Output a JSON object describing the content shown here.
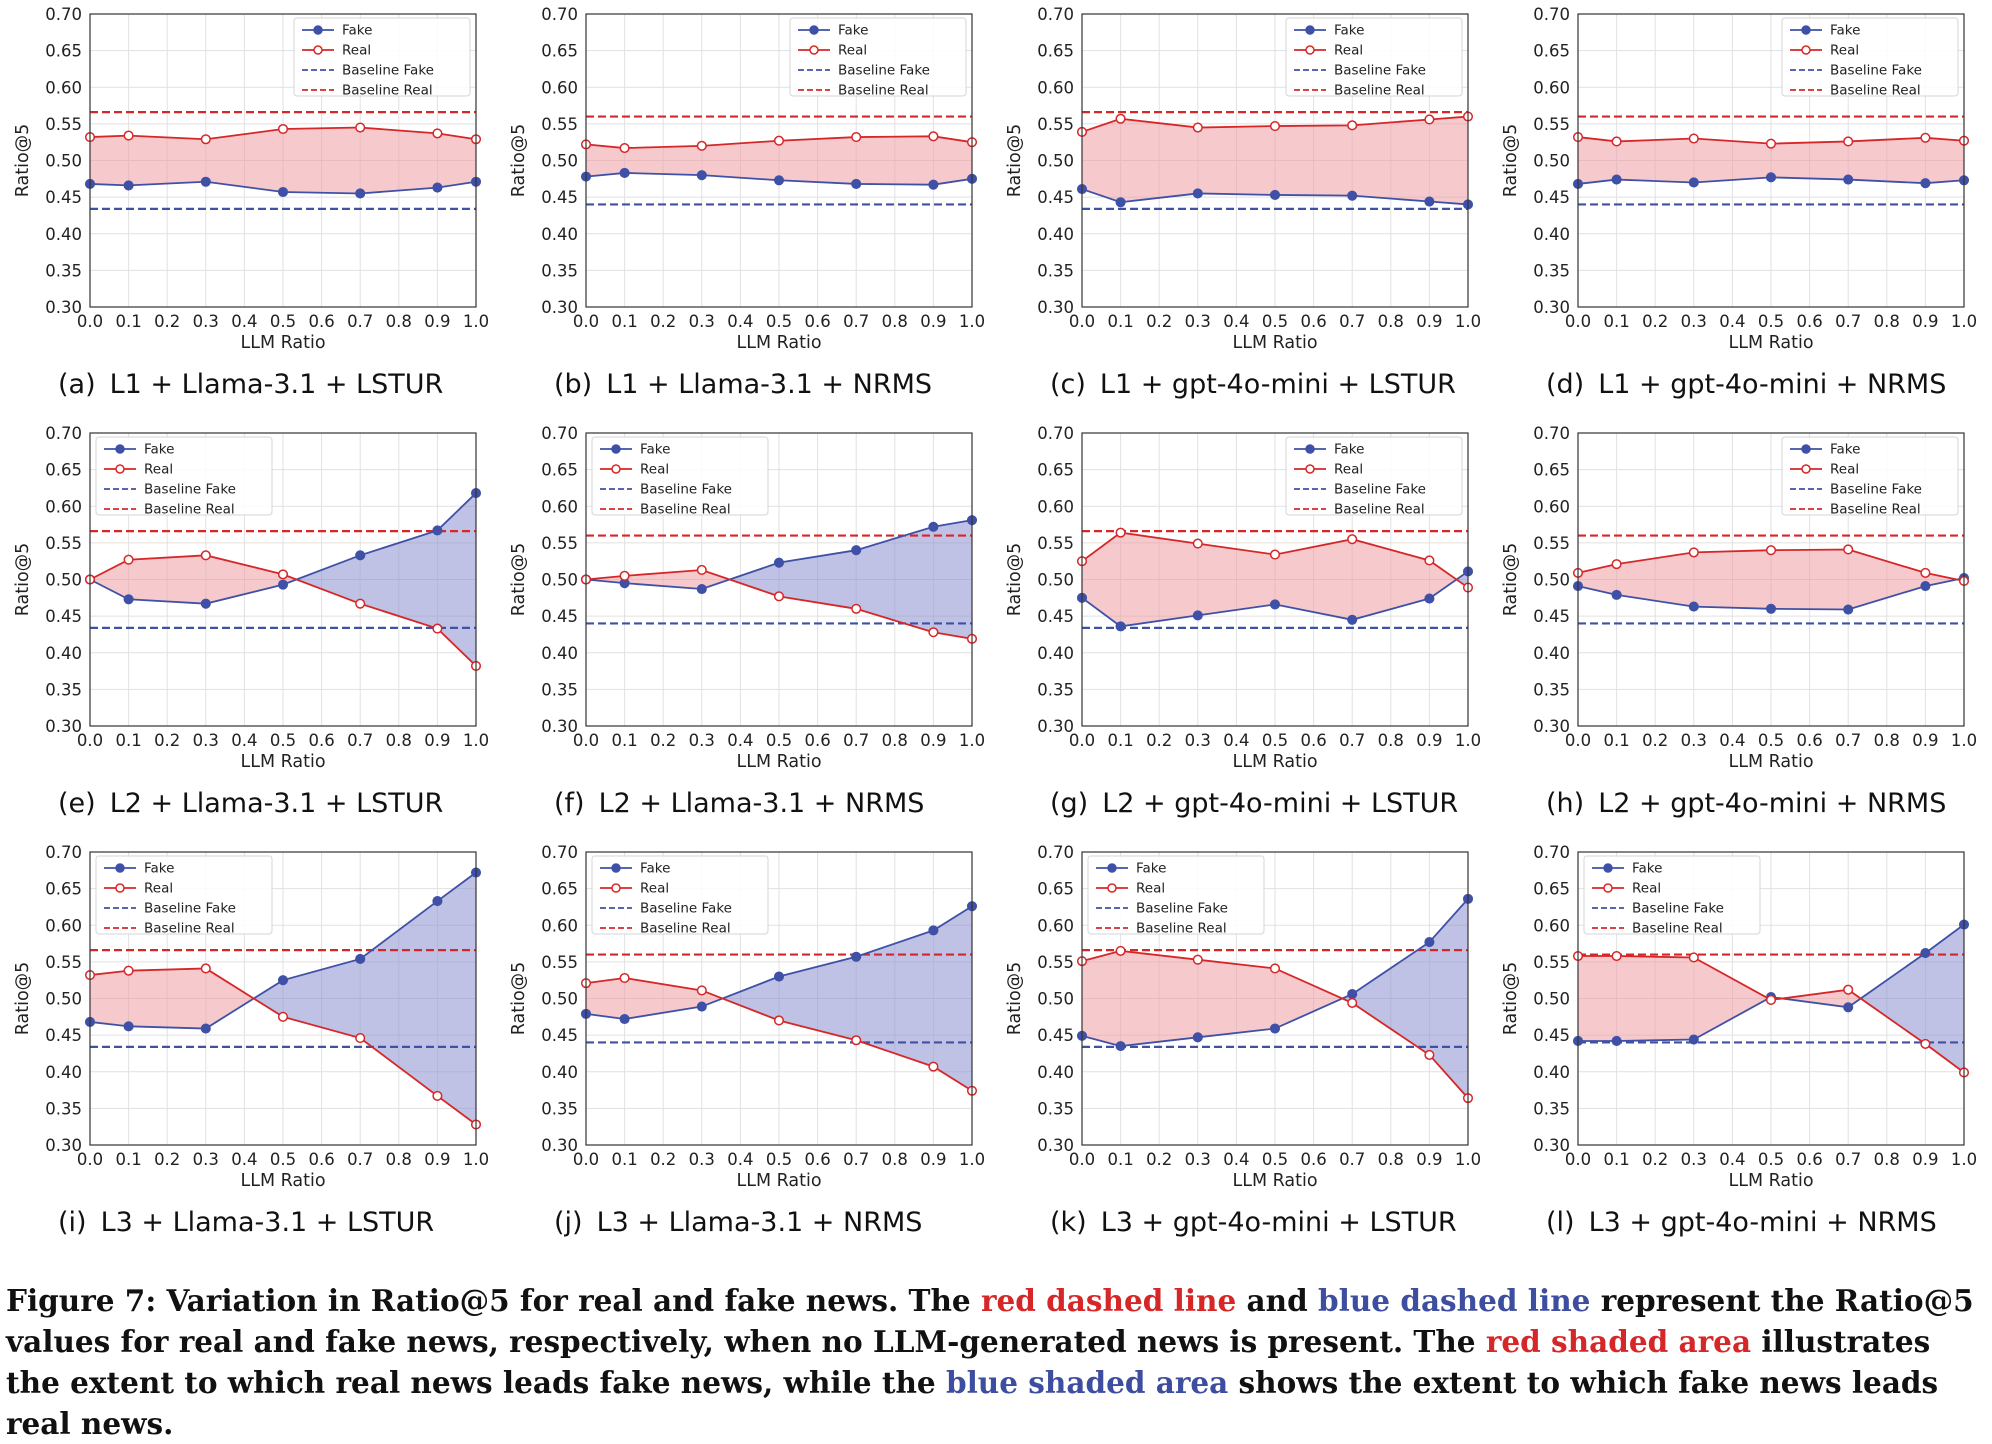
{
  "colors": {
    "fake": "#3F51A6",
    "real": "#D62728",
    "fake_fill": "#8C8FCF",
    "real_fill": "#EE9DA4",
    "grid": "#E1E1E1"
  },
  "axis": {
    "xlabel": "LLM Ratio",
    "ylabel": "Ratio@5",
    "xlim": [
      0.0,
      1.0
    ],
    "ylim": [
      0.3,
      0.7
    ],
    "xticks": [
      "0.0",
      "0.1",
      "0.2",
      "0.3",
      "0.4",
      "0.5",
      "0.6",
      "0.7",
      "0.8",
      "0.9",
      "1.0"
    ],
    "yticks": [
      "0.30",
      "0.35",
      "0.40",
      "0.45",
      "0.50",
      "0.55",
      "0.60",
      "0.65",
      "0.70"
    ]
  },
  "legend_labels": [
    "Fake",
    "Real",
    "Baseline Fake",
    "Baseline Real"
  ],
  "caption": {
    "prefix": "Figure 7: Variation in Ratio@5 for real and fake news. The ",
    "red_dashed": "red dashed line",
    "and": " and ",
    "blue_dashed": "blue dashed line",
    "mid1": " represent the Ratio@5 values for real and fake news, respectively, when no LLM-generated news is present. The ",
    "red_shaded": "red shaded area",
    "mid2": " illustrates the extent to which real news leads fake news, while the ",
    "blue_shaded": "blue shaded area",
    "suffix": " shows the extent to which fake news leads real news."
  },
  "chart_data": [
    {
      "id": "a",
      "label": "(a)",
      "title": "L1 + Llama-3.1 + LSTUR",
      "type": "line",
      "legend": "top-right",
      "x": [
        0.0,
        0.1,
        0.3,
        0.5,
        0.7,
        0.9,
        1.0
      ],
      "series": [
        {
          "name": "Fake",
          "values": [
            0.468,
            0.466,
            0.471,
            0.457,
            0.455,
            0.463,
            0.471
          ]
        },
        {
          "name": "Real",
          "values": [
            0.532,
            0.534,
            0.529,
            0.543,
            0.545,
            0.537,
            0.529
          ]
        }
      ],
      "baseline_fake": 0.434,
      "baseline_real": 0.566
    },
    {
      "id": "b",
      "label": "(b)",
      "title": "L1 + Llama-3.1 + NRMS",
      "type": "line",
      "legend": "top-right",
      "x": [
        0.0,
        0.1,
        0.3,
        0.5,
        0.7,
        0.9,
        1.0
      ],
      "series": [
        {
          "name": "Fake",
          "values": [
            0.478,
            0.483,
            0.48,
            0.473,
            0.468,
            0.467,
            0.475
          ]
        },
        {
          "name": "Real",
          "values": [
            0.522,
            0.517,
            0.52,
            0.527,
            0.532,
            0.533,
            0.525
          ]
        }
      ],
      "baseline_fake": 0.44,
      "baseline_real": 0.56
    },
    {
      "id": "c",
      "label": "(c)",
      "title": "L1 + gpt-4o-mini + LSTUR",
      "type": "line",
      "legend": "top-right",
      "x": [
        0.0,
        0.1,
        0.3,
        0.5,
        0.7,
        0.9,
        1.0
      ],
      "series": [
        {
          "name": "Fake",
          "values": [
            0.461,
            0.443,
            0.455,
            0.453,
            0.452,
            0.444,
            0.44
          ]
        },
        {
          "name": "Real",
          "values": [
            0.539,
            0.557,
            0.545,
            0.547,
            0.548,
            0.556,
            0.56
          ]
        }
      ],
      "baseline_fake": 0.434,
      "baseline_real": 0.566
    },
    {
      "id": "d",
      "label": "(d)",
      "title": "L1 + gpt-4o-mini + NRMS",
      "type": "line",
      "legend": "top-right",
      "x": [
        0.0,
        0.1,
        0.3,
        0.5,
        0.7,
        0.9,
        1.0
      ],
      "series": [
        {
          "name": "Fake",
          "values": [
            0.468,
            0.474,
            0.47,
            0.477,
            0.474,
            0.469,
            0.473
          ]
        },
        {
          "name": "Real",
          "values": [
            0.532,
            0.526,
            0.53,
            0.523,
            0.526,
            0.531,
            0.527
          ]
        }
      ],
      "baseline_fake": 0.44,
      "baseline_real": 0.56
    },
    {
      "id": "e",
      "label": "(e)",
      "title": "L2 + Llama-3.1 + LSTUR",
      "type": "line",
      "legend": "top-left",
      "x": [
        0.0,
        0.1,
        0.3,
        0.5,
        0.7,
        0.9,
        1.0
      ],
      "series": [
        {
          "name": "Fake",
          "values": [
            0.5,
            0.473,
            0.467,
            0.493,
            0.533,
            0.567,
            0.618
          ]
        },
        {
          "name": "Real",
          "values": [
            0.5,
            0.527,
            0.533,
            0.507,
            0.467,
            0.433,
            0.382
          ]
        }
      ],
      "baseline_fake": 0.434,
      "baseline_real": 0.566
    },
    {
      "id": "f",
      "label": "(f)",
      "title": "L2 + Llama-3.1 + NRMS",
      "type": "line",
      "legend": "top-left",
      "x": [
        0.0,
        0.1,
        0.3,
        0.5,
        0.7,
        0.9,
        1.0
      ],
      "series": [
        {
          "name": "Fake",
          "values": [
            0.5,
            0.495,
            0.487,
            0.523,
            0.54,
            0.572,
            0.581
          ]
        },
        {
          "name": "Real",
          "values": [
            0.5,
            0.505,
            0.513,
            0.477,
            0.46,
            0.428,
            0.419
          ]
        }
      ],
      "baseline_fake": 0.44,
      "baseline_real": 0.56
    },
    {
      "id": "g",
      "label": "(g)",
      "title": "L2 + gpt-4o-mini + LSTUR",
      "type": "line",
      "legend": "top-right",
      "x": [
        0.0,
        0.1,
        0.3,
        0.5,
        0.7,
        0.9,
        1.0
      ],
      "series": [
        {
          "name": "Fake",
          "values": [
            0.475,
            0.436,
            0.451,
            0.466,
            0.445,
            0.474,
            0.511
          ]
        },
        {
          "name": "Real",
          "values": [
            0.525,
            0.564,
            0.549,
            0.534,
            0.555,
            0.526,
            0.489
          ]
        }
      ],
      "baseline_fake": 0.434,
      "baseline_real": 0.566
    },
    {
      "id": "h",
      "label": "(h)",
      "title": "L2 + gpt-4o-mini + NRMS",
      "type": "line",
      "legend": "top-right",
      "x": [
        0.0,
        0.1,
        0.3,
        0.5,
        0.7,
        0.9,
        1.0
      ],
      "series": [
        {
          "name": "Fake",
          "values": [
            0.491,
            0.479,
            0.463,
            0.46,
            0.459,
            0.491,
            0.502
          ]
        },
        {
          "name": "Real",
          "values": [
            0.509,
            0.521,
            0.537,
            0.54,
            0.541,
            0.509,
            0.498
          ]
        }
      ],
      "baseline_fake": 0.44,
      "baseline_real": 0.56
    },
    {
      "id": "i",
      "label": "(i)",
      "title": "L3 + Llama-3.1 + LSTUR",
      "type": "line",
      "legend": "top-left",
      "x": [
        0.0,
        0.1,
        0.3,
        0.5,
        0.7,
        0.9,
        1.0
      ],
      "series": [
        {
          "name": "Fake",
          "values": [
            0.468,
            0.462,
            0.459,
            0.525,
            0.554,
            0.633,
            0.672
          ]
        },
        {
          "name": "Real",
          "values": [
            0.532,
            0.538,
            0.541,
            0.475,
            0.446,
            0.367,
            0.328
          ]
        }
      ],
      "baseline_fake": 0.434,
      "baseline_real": 0.566
    },
    {
      "id": "j",
      "label": "(j)",
      "title": "L3 + Llama-3.1 + NRMS",
      "type": "line",
      "legend": "top-left",
      "x": [
        0.0,
        0.1,
        0.3,
        0.5,
        0.7,
        0.9,
        1.0
      ],
      "series": [
        {
          "name": "Fake",
          "values": [
            0.479,
            0.472,
            0.489,
            0.53,
            0.557,
            0.593,
            0.626
          ]
        },
        {
          "name": "Real",
          "values": [
            0.521,
            0.528,
            0.511,
            0.47,
            0.443,
            0.407,
            0.374
          ]
        }
      ],
      "baseline_fake": 0.44,
      "baseline_real": 0.56
    },
    {
      "id": "k",
      "label": "(k)",
      "title": "L3 + gpt-4o-mini + LSTUR",
      "type": "line",
      "legend": "top-left",
      "x": [
        0.0,
        0.1,
        0.3,
        0.5,
        0.7,
        0.9,
        1.0
      ],
      "series": [
        {
          "name": "Fake",
          "values": [
            0.449,
            0.435,
            0.447,
            0.459,
            0.506,
            0.577,
            0.636
          ]
        },
        {
          "name": "Real",
          "values": [
            0.551,
            0.565,
            0.553,
            0.541,
            0.494,
            0.423,
            0.364
          ]
        }
      ],
      "baseline_fake": 0.434,
      "baseline_real": 0.566
    },
    {
      "id": "l",
      "label": "(l)",
      "title": "L3 + gpt-4o-mini + NRMS",
      "type": "line",
      "legend": "top-left",
      "x": [
        0.0,
        0.1,
        0.3,
        0.5,
        0.7,
        0.9,
        1.0
      ],
      "series": [
        {
          "name": "Fake",
          "values": [
            0.442,
            0.442,
            0.444,
            0.502,
            0.488,
            0.562,
            0.601
          ]
        },
        {
          "name": "Real",
          "values": [
            0.558,
            0.558,
            0.556,
            0.498,
            0.512,
            0.438,
            0.399
          ]
        }
      ],
      "baseline_fake": 0.44,
      "baseline_real": 0.56
    }
  ]
}
